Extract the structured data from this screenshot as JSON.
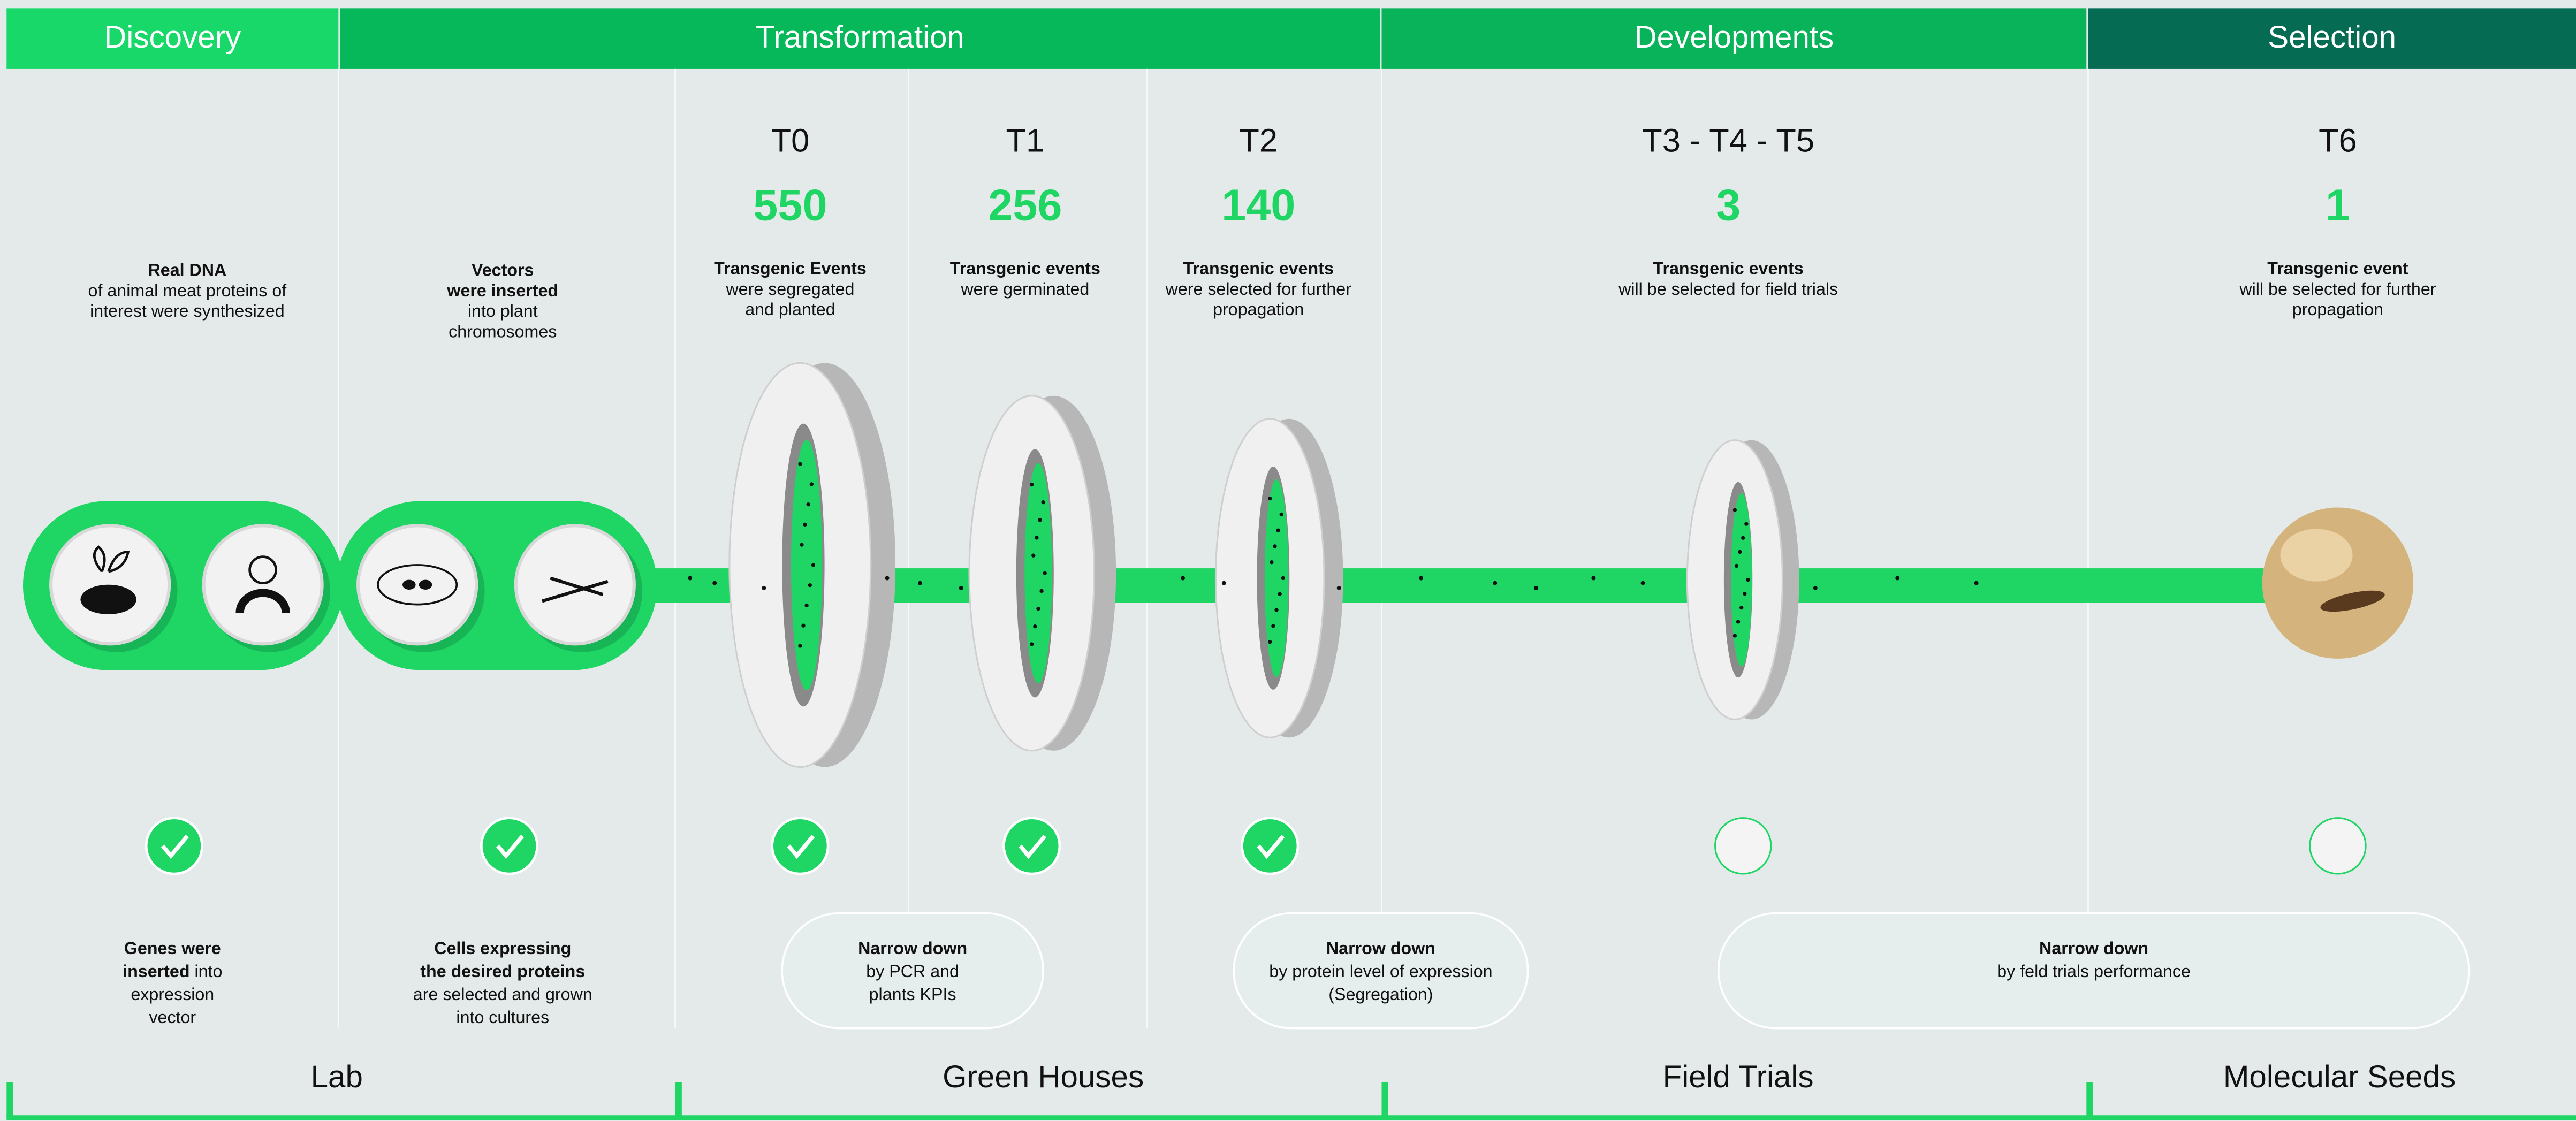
{
  "phases": [
    "Discovery",
    "Transformation",
    "Developments",
    "Selection"
  ],
  "steps": [
    {
      "description": [
        "Real DNA",
        "of animal meat proteins of",
        "interest were synthesized"
      ],
      "result": [
        "Genes were",
        [
          "inserted",
          " into"
        ],
        "expression",
        "vector"
      ]
    },
    {
      "description": [
        "Vectors",
        "were inserted",
        "into plant",
        "chromosomes"
      ],
      "result": [
        "Cells expressing",
        "the desired proteins",
        "are selected and grown",
        "into cultures"
      ]
    }
  ],
  "stages": [
    {
      "title": "T0",
      "count": 550,
      "description": [
        "Transgenic Events",
        "were segregated",
        "and planted"
      ]
    },
    {
      "title": "T1",
      "count": 256,
      "description": [
        "Transgenic events",
        "were germinated"
      ]
    },
    {
      "title": "T2",
      "count": 140,
      "description": [
        "Transgenic events",
        "were selected for further",
        "propagation"
      ]
    },
    {
      "title": "T3 - T4 - T5",
      "count": 3,
      "description": [
        "Transgenic events",
        "will be selected for field trials"
      ]
    },
    {
      "title": "T6",
      "count": 1,
      "description": [
        "Transgenic event",
        "will be selected for further",
        "propagation"
      ]
    }
  ],
  "filters": [
    [
      "Narrow down",
      "by PCR and",
      "plants KPIs"
    ],
    [
      "Narrow down",
      "by protein level of expression",
      "(Segregation)"
    ],
    [
      "Narrow down",
      "by feld trials performance"
    ]
  ],
  "locations": [
    "Lab",
    "Green Houses",
    "Field Trials",
    "Molecular Seeds"
  ]
}
